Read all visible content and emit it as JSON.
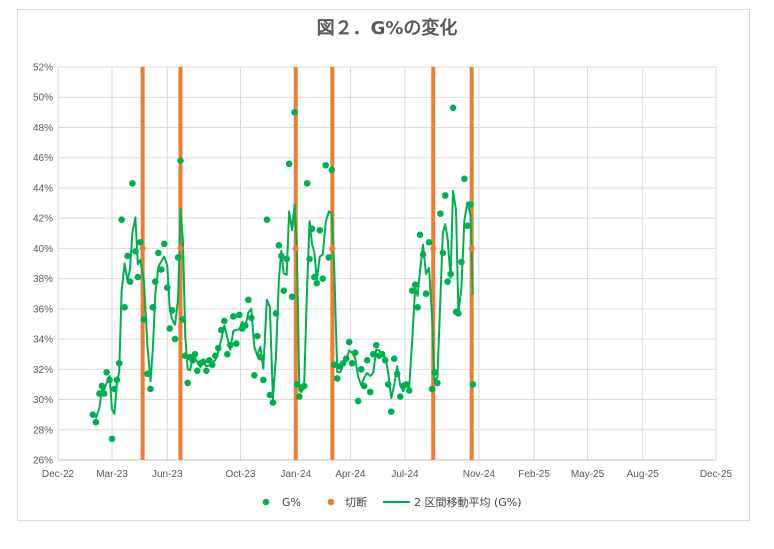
{
  "chart_data": {
    "type": "scatter",
    "title": "図２．G%の変化",
    "xlabel": "",
    "ylabel": "",
    "x_ticks": [
      "Dec-22",
      "Mar-23",
      "Jun-23",
      "Oct-23",
      "Jan-24",
      "Apr-24",
      "Jul-24",
      "Nov-24",
      "Feb-25",
      "May-25",
      "Aug-25",
      "Dec-25"
    ],
    "x_tick_dates": [
      "2022-12-01",
      "2023-03-01",
      "2023-06-01",
      "2023-10-01",
      "2024-01-01",
      "2024-04-01",
      "2024-07-01",
      "2024-11-01",
      "2025-02-01",
      "2025-05-01",
      "2025-08-01",
      "2025-12-01"
    ],
    "y_ticks": [
      "26%",
      "28%",
      "30%",
      "32%",
      "34%",
      "36%",
      "38%",
      "40%",
      "42%",
      "44%",
      "46%",
      "48%",
      "50%",
      "52%"
    ],
    "ylim": [
      26,
      52
    ],
    "grid": true,
    "legend_position": "bottom",
    "legend": [
      "G%",
      "切断",
      "2 区間移動平均 (G%)"
    ],
    "colors": {
      "g_points": "#00b050",
      "cut": "#ed7d31",
      "moving_avg": "#00b050"
    },
    "series": [
      {
        "name": "G%",
        "type": "scatter",
        "points": [
          [
            "2023-01-28",
            29.0
          ],
          [
            "2023-02-02",
            28.5
          ],
          [
            "2023-02-08",
            30.4
          ],
          [
            "2023-02-12",
            30.9
          ],
          [
            "2023-02-16",
            30.4
          ],
          [
            "2023-02-20",
            31.8
          ],
          [
            "2023-02-25",
            31.3
          ],
          [
            "2023-03-01",
            27.4
          ],
          [
            "2023-03-05",
            30.7
          ],
          [
            "2023-03-09",
            31.3
          ],
          [
            "2023-03-13",
            32.4
          ],
          [
            "2023-03-17",
            41.9
          ],
          [
            "2023-03-22",
            36.1
          ],
          [
            "2023-03-27",
            39.5
          ],
          [
            "2023-03-31",
            37.8
          ],
          [
            "2023-04-04",
            44.3
          ],
          [
            "2023-04-09",
            39.8
          ],
          [
            "2023-04-13",
            38.1
          ],
          [
            "2023-04-17",
            40.4
          ],
          [
            "2023-04-23",
            35.3
          ],
          [
            "2023-04-29",
            31.7
          ],
          [
            "2023-05-04",
            30.7
          ],
          [
            "2023-05-08",
            36.1
          ],
          [
            "2023-05-12",
            37.8
          ],
          [
            "2023-05-17",
            39.7
          ],
          [
            "2023-05-22",
            38.6
          ],
          [
            "2023-05-27",
            40.3
          ],
          [
            "2023-06-01",
            37.4
          ],
          [
            "2023-06-05",
            34.7
          ],
          [
            "2023-06-09",
            35.9
          ],
          [
            "2023-06-14",
            34.0
          ],
          [
            "2023-06-19",
            39.4
          ],
          [
            "2023-06-23",
            45.8
          ],
          [
            "2023-06-27",
            35.3
          ],
          [
            "2023-07-01",
            32.9
          ],
          [
            "2023-07-05",
            31.1
          ],
          [
            "2023-07-09",
            32.8
          ],
          [
            "2023-07-13",
            32.6
          ],
          [
            "2023-07-17",
            33.0
          ],
          [
            "2023-07-21",
            31.9
          ],
          [
            "2023-07-26",
            32.4
          ],
          [
            "2023-07-31",
            32.5
          ],
          [
            "2023-08-05",
            31.9
          ],
          [
            "2023-08-10",
            32.6
          ],
          [
            "2023-08-15",
            32.3
          ],
          [
            "2023-08-20",
            32.9
          ],
          [
            "2023-08-25",
            33.4
          ],
          [
            "2023-08-30",
            34.6
          ],
          [
            "2023-09-04",
            35.2
          ],
          [
            "2023-09-09",
            33.0
          ],
          [
            "2023-09-14",
            33.6
          ],
          [
            "2023-09-19",
            35.5
          ],
          [
            "2023-09-24",
            33.7
          ],
          [
            "2023-09-29",
            35.6
          ],
          [
            "2023-10-04",
            34.7
          ],
          [
            "2023-10-09",
            34.9
          ],
          [
            "2023-10-14",
            36.6
          ],
          [
            "2023-10-19",
            35.4
          ],
          [
            "2023-10-24",
            31.6
          ],
          [
            "2023-10-29",
            34.2
          ],
          [
            "2023-11-03",
            32.8
          ],
          [
            "2023-11-08",
            31.3
          ],
          [
            "2023-11-14",
            41.9
          ],
          [
            "2023-11-19",
            30.3
          ],
          [
            "2023-11-24",
            29.8
          ],
          [
            "2023-11-29",
            35.7
          ],
          [
            "2023-12-04",
            40.2
          ],
          [
            "2023-12-08",
            39.5
          ],
          [
            "2023-12-12",
            37.2
          ],
          [
            "2023-12-17",
            39.3
          ],
          [
            "2023-12-21",
            45.6
          ],
          [
            "2023-12-26",
            36.8
          ],
          [
            "2023-12-30",
            49.0
          ],
          [
            "2024-01-03",
            31.0
          ],
          [
            "2024-01-07",
            30.2
          ],
          [
            "2024-01-11",
            30.8
          ],
          [
            "2024-01-15",
            30.9
          ],
          [
            "2024-01-20",
            44.3
          ],
          [
            "2024-01-24",
            39.3
          ],
          [
            "2024-01-28",
            41.3
          ],
          [
            "2024-02-01",
            38.1
          ],
          [
            "2024-02-05",
            37.7
          ],
          [
            "2024-02-10",
            41.2
          ],
          [
            "2024-02-15",
            38.0
          ],
          [
            "2024-02-20",
            45.5
          ],
          [
            "2024-02-25",
            39.4
          ],
          [
            "2024-03-01",
            45.2
          ],
          [
            "2024-03-05",
            32.3
          ],
          [
            "2024-03-10",
            31.4
          ],
          [
            "2024-03-15",
            32.2
          ],
          [
            "2024-03-20",
            32.4
          ],
          [
            "2024-03-25",
            32.7
          ],
          [
            "2024-03-30",
            33.8
          ],
          [
            "2024-04-04",
            32.4
          ],
          [
            "2024-04-09",
            33.1
          ],
          [
            "2024-04-14",
            29.9
          ],
          [
            "2024-04-19",
            32.0
          ],
          [
            "2024-04-24",
            30.9
          ],
          [
            "2024-04-29",
            32.6
          ],
          [
            "2024-05-04",
            30.5
          ],
          [
            "2024-05-09",
            33.0
          ],
          [
            "2024-05-14",
            33.6
          ],
          [
            "2024-05-19",
            32.9
          ],
          [
            "2024-05-24",
            33.0
          ],
          [
            "2024-05-29",
            32.6
          ],
          [
            "2024-06-03",
            31.0
          ],
          [
            "2024-06-08",
            29.2
          ],
          [
            "2024-06-13",
            32.7
          ],
          [
            "2024-06-18",
            31.7
          ],
          [
            "2024-06-23",
            30.2
          ],
          [
            "2024-06-28",
            30.9
          ],
          [
            "2024-07-03",
            31.0
          ],
          [
            "2024-07-08",
            30.6
          ],
          [
            "2024-07-13",
            37.2
          ],
          [
            "2024-07-18",
            37.6
          ],
          [
            "2024-07-22",
            36.1
          ],
          [
            "2024-07-26",
            40.9
          ],
          [
            "2024-07-31",
            39.6
          ],
          [
            "2024-08-05",
            37.0
          ],
          [
            "2024-08-10",
            40.4
          ],
          [
            "2024-08-15",
            30.7
          ],
          [
            "2024-08-19",
            31.8
          ],
          [
            "2024-08-24",
            31.1
          ],
          [
            "2024-08-29",
            42.3
          ],
          [
            "2024-09-02",
            39.7
          ],
          [
            "2024-09-06",
            43.5
          ],
          [
            "2024-09-10",
            37.8
          ],
          [
            "2024-09-15",
            38.3
          ],
          [
            "2024-09-19",
            49.3
          ],
          [
            "2024-09-24",
            35.8
          ],
          [
            "2024-09-28",
            35.7
          ],
          [
            "2024-10-03",
            39.1
          ],
          [
            "2024-10-08",
            44.6
          ],
          [
            "2024-10-13",
            41.5
          ],
          [
            "2024-10-18",
            42.9
          ],
          [
            "2024-10-22",
            31.0
          ]
        ]
      },
      {
        "name": "切断",
        "type": "scatter",
        "points": [
          [
            "2023-04-21",
            40.0
          ],
          [
            "2023-06-23",
            40.0
          ],
          [
            "2024-01-01",
            40.0
          ],
          [
            "2024-03-02",
            40.0
          ],
          [
            "2024-08-17",
            40.0
          ],
          [
            "2024-10-20",
            40.0
          ]
        ]
      },
      {
        "name": "2 区間移動平均 (G%)",
        "type": "line",
        "method": "moving_average",
        "period": 2,
        "of": "G%"
      }
    ],
    "cut_lines": [
      {
        "x": "2023-04-21",
        "y": [
          26,
          52
        ]
      },
      {
        "x": "2023-06-23",
        "y": [
          26,
          52
        ]
      },
      {
        "x": "2024-01-01",
        "y": [
          26,
          52
        ]
      },
      {
        "x": "2024-03-02",
        "y": [
          26,
          52
        ]
      },
      {
        "x": "2024-08-17",
        "y": [
          26,
          52
        ]
      },
      {
        "x": "2024-10-20",
        "y": [
          26,
          52
        ]
      }
    ]
  }
}
